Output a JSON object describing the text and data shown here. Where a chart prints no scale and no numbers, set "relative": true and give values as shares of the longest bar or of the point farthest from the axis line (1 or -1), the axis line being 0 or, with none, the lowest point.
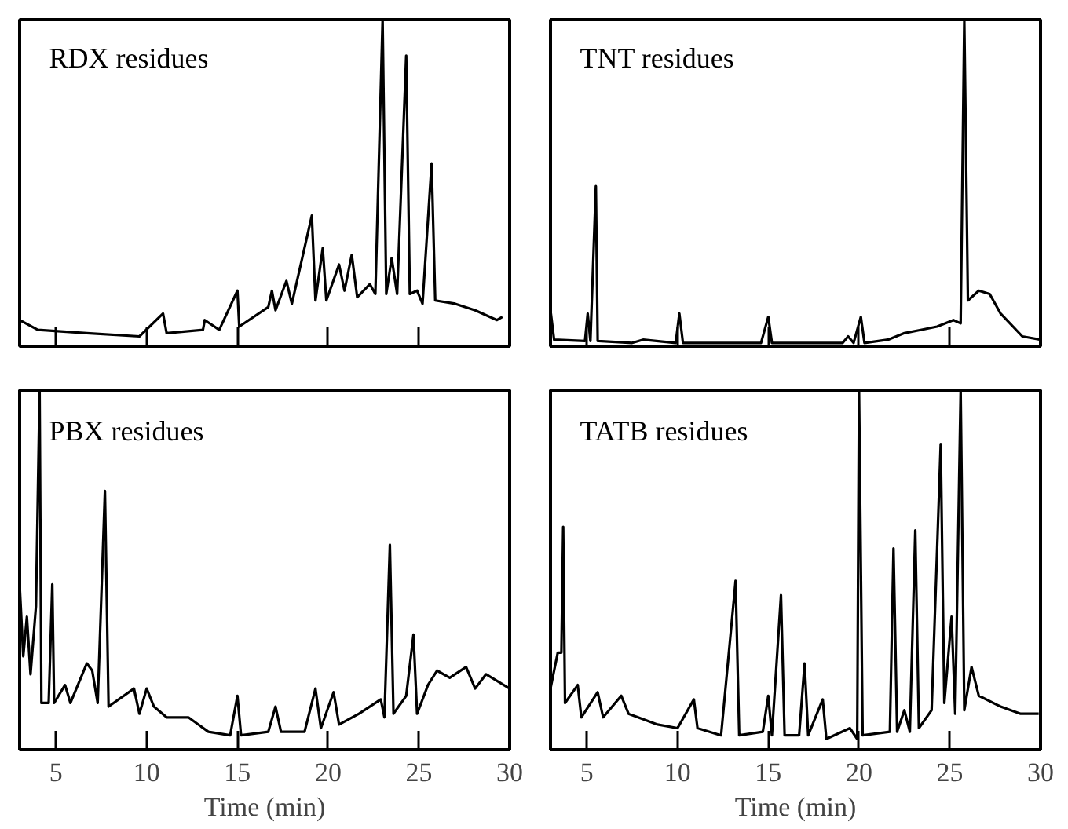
{
  "chart_data": [
    {
      "type": "line",
      "title": "RDX residues",
      "relative": true,
      "xlim": [
        3,
        30
      ],
      "xticks": [
        5,
        10,
        15,
        20,
        25,
        30
      ],
      "tick_labels": false,
      "series": [
        {
          "color": "#000000",
          "x": [
            3.0,
            4.0,
            6.7,
            9.6,
            10.9,
            11.1,
            13.1,
            13.2,
            14.0,
            15.0,
            15.1,
            16.7,
            16.9,
            17.1,
            17.7,
            18.0,
            19.1,
            19.3,
            19.7,
            19.9,
            20.6,
            20.9,
            21.3,
            21.6,
            22.3,
            22.6,
            23.0,
            23.2,
            23.5,
            23.8,
            24.3,
            24.5,
            24.9,
            25.2,
            25.7,
            25.9,
            27.0,
            28.1,
            29.3,
            29.6
          ],
          "values": [
            0.08,
            0.05,
            0.04,
            0.03,
            0.1,
            0.04,
            0.05,
            0.08,
            0.05,
            0.17,
            0.06,
            0.12,
            0.17,
            0.11,
            0.2,
            0.13,
            0.4,
            0.14,
            0.3,
            0.14,
            0.25,
            0.17,
            0.28,
            0.15,
            0.19,
            0.16,
            1.0,
            0.16,
            0.27,
            0.16,
            0.89,
            0.16,
            0.17,
            0.13,
            0.56,
            0.14,
            0.13,
            0.11,
            0.08,
            0.09
          ]
        }
      ]
    },
    {
      "type": "line",
      "title": "TNT residues",
      "relative": true,
      "xlim": [
        3,
        30
      ],
      "xticks": [
        5,
        10,
        15,
        20,
        25,
        30
      ],
      "tick_labels": false,
      "series": [
        {
          "color": "#000000",
          "x": [
            3.0,
            3.2,
            4.9,
            5.05,
            5.2,
            5.5,
            5.6,
            7.5,
            8.1,
            9.9,
            10.1,
            10.3,
            14.6,
            15.0,
            15.2,
            19.1,
            19.4,
            19.7,
            20.1,
            20.3,
            21.6,
            22.5,
            23.4,
            24.3,
            25.2,
            25.6,
            25.8,
            26.0,
            26.6,
            27.2,
            27.8,
            29.0,
            30.0
          ],
          "values": [
            0.11,
            0.02,
            0.016,
            0.1,
            0.016,
            0.49,
            0.016,
            0.01,
            0.02,
            0.01,
            0.1,
            0.01,
            0.01,
            0.09,
            0.01,
            0.01,
            0.03,
            0.01,
            0.09,
            0.01,
            0.02,
            0.04,
            0.05,
            0.06,
            0.08,
            0.07,
            1.0,
            0.14,
            0.17,
            0.16,
            0.1,
            0.03,
            0.02
          ]
        }
      ]
    },
    {
      "type": "line",
      "title": "PBX residues",
      "xlabel": "Time (min)",
      "relative": true,
      "xlim": [
        3,
        30
      ],
      "xticks": [
        5,
        10,
        15,
        20,
        25,
        30
      ],
      "tick_labels": "x",
      "series": [
        {
          "color": "#000000",
          "x": [
            3.0,
            3.2,
            3.4,
            3.6,
            3.9,
            4.1,
            4.2,
            4.6,
            4.8,
            4.9,
            5.5,
            5.8,
            6.7,
            7.0,
            7.3,
            7.7,
            7.9,
            9.3,
            9.6,
            10.0,
            10.4,
            11.1,
            12.3,
            13.4,
            14.6,
            15.0,
            15.2,
            16.7,
            17.1,
            17.4,
            18.7,
            19.3,
            19.6,
            20.3,
            20.6,
            21.7,
            22.9,
            23.1,
            23.4,
            23.6,
            24.3,
            24.7,
            24.9,
            25.5,
            26.0,
            26.7,
            27.6,
            28.1,
            28.7,
            30.0
          ],
          "values": [
            0.46,
            0.26,
            0.37,
            0.21,
            0.4,
            1.0,
            0.13,
            0.13,
            0.46,
            0.13,
            0.18,
            0.13,
            0.24,
            0.22,
            0.13,
            0.72,
            0.12,
            0.17,
            0.1,
            0.17,
            0.12,
            0.09,
            0.09,
            0.05,
            0.04,
            0.15,
            0.04,
            0.05,
            0.12,
            0.05,
            0.05,
            0.17,
            0.06,
            0.16,
            0.07,
            0.1,
            0.14,
            0.09,
            0.57,
            0.1,
            0.15,
            0.32,
            0.1,
            0.18,
            0.22,
            0.2,
            0.23,
            0.17,
            0.21,
            0.17
          ]
        }
      ]
    },
    {
      "type": "line",
      "title": "TATB residues",
      "xlabel": "Time (min)",
      "relative": true,
      "xlim": [
        3,
        30
      ],
      "xticks": [
        5,
        10,
        15,
        20,
        25,
        30
      ],
      "tick_labels": "x",
      "series": [
        {
          "color": "#000000",
          "x": [
            3.0,
            3.4,
            3.6,
            3.7,
            3.8,
            4.5,
            4.7,
            5.6,
            5.9,
            6.9,
            7.3,
            8.9,
            10.0,
            10.9,
            11.1,
            12.4,
            13.2,
            13.4,
            14.7,
            15.0,
            15.2,
            15.7,
            15.9,
            16.7,
            17.0,
            17.2,
            18.0,
            18.2,
            19.5,
            19.9,
            20.0,
            20.2,
            21.7,
            21.9,
            22.1,
            22.5,
            22.8,
            23.1,
            23.3,
            24.0,
            24.5,
            24.7,
            25.1,
            25.3,
            25.6,
            25.8,
            26.2,
            26.6,
            27.8,
            28.9,
            29.9
          ],
          "values": [
            0.17,
            0.27,
            0.27,
            0.62,
            0.13,
            0.18,
            0.09,
            0.16,
            0.09,
            0.15,
            0.1,
            0.07,
            0.06,
            0.14,
            0.06,
            0.04,
            0.47,
            0.04,
            0.05,
            0.15,
            0.04,
            0.43,
            0.04,
            0.04,
            0.24,
            0.04,
            0.14,
            0.03,
            0.06,
            0.03,
            1.0,
            0.04,
            0.05,
            0.56,
            0.05,
            0.11,
            0.05,
            0.61,
            0.06,
            0.11,
            0.85,
            0.13,
            0.37,
            0.1,
            1.0,
            0.11,
            0.23,
            0.15,
            0.12,
            0.1,
            0.1
          ]
        }
      ]
    }
  ]
}
